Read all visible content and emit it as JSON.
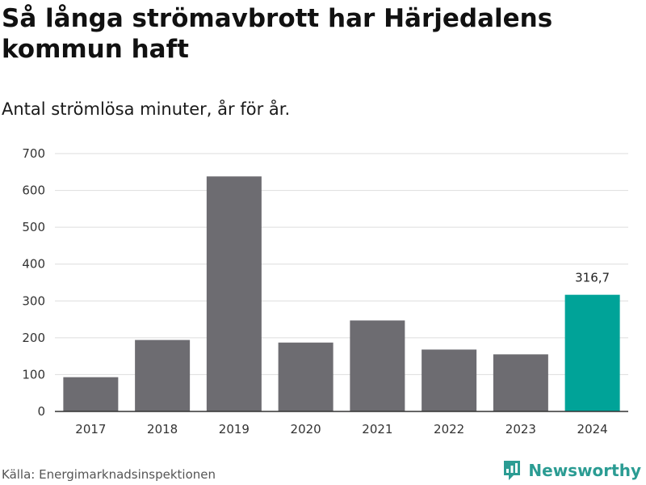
{
  "title": "Så långa strömavbrott har Härjedalens kommun haft",
  "subtitle": "Antal strömlösa minuter, år för år.",
  "source": "Källa: Energimarknadsinspektionen",
  "brand": {
    "name": "Newsworthy",
    "icon": "newsworthy-logo-icon"
  },
  "colors": {
    "bar": "#6d6c71",
    "highlight": "#00a398",
    "grid": "#dddddd",
    "axis": "#333333",
    "text": "#333333",
    "brand": "#2b9c93"
  },
  "chart_data": {
    "type": "bar",
    "title": "Så långa strömavbrott har Härjedalens kommun haft",
    "subtitle": "Antal strömlösa minuter, år för år.",
    "xlabel": "",
    "ylabel": "",
    "categories": [
      "2017",
      "2018",
      "2019",
      "2020",
      "2021",
      "2022",
      "2023",
      "2024"
    ],
    "values": [
      93,
      194,
      638,
      187,
      247,
      168,
      155,
      316.7
    ],
    "highlight_index": 7,
    "data_labels": [
      null,
      null,
      null,
      null,
      null,
      null,
      null,
      "316,7"
    ],
    "ylim": [
      0,
      700
    ],
    "yticks": [
      0,
      100,
      200,
      300,
      400,
      500,
      600,
      700
    ],
    "ytick_labels": [
      "0",
      "100",
      "200",
      "300",
      "400",
      "500",
      "600",
      "700"
    ],
    "grid": true,
    "legend": "none"
  }
}
